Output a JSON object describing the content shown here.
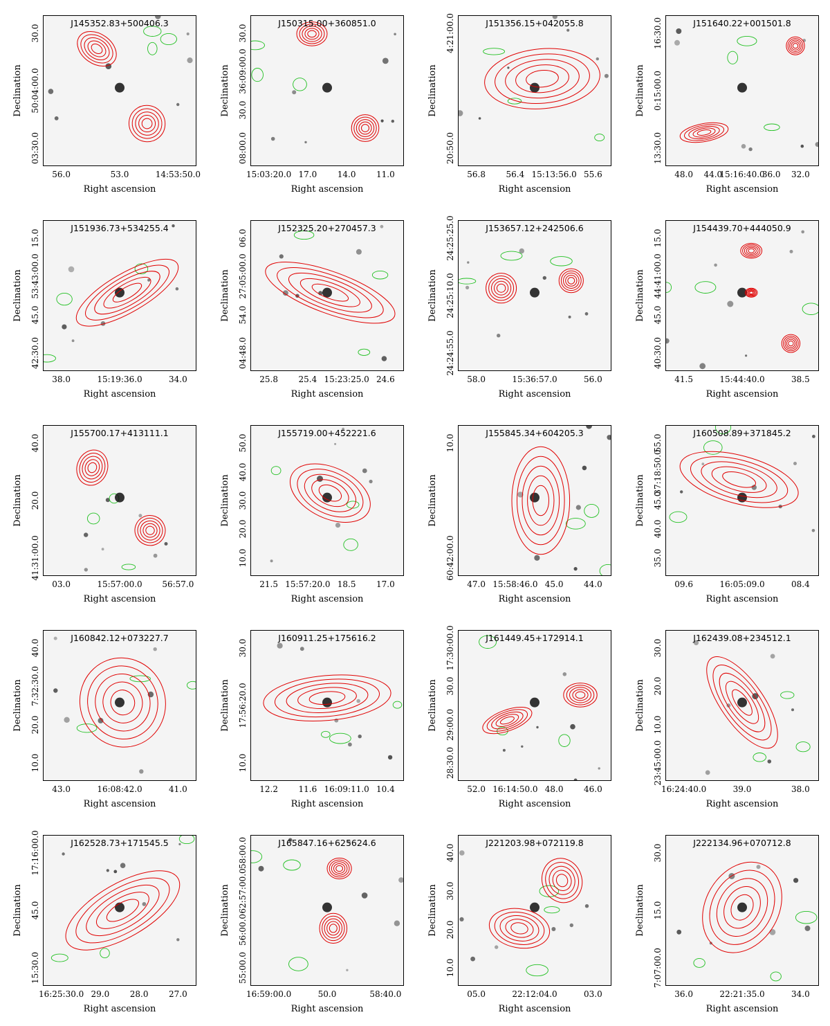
{
  "figure": {
    "x_axis_label": "Right ascension",
    "y_axis_label": "Declination",
    "colors": {
      "radio_contours": "#e00000",
      "other_contours": "#22c022",
      "background": "#f4f4f4",
      "source": "#111111"
    },
    "panels": [
      {
        "title": "J145352.83+500406.3",
        "x_ticks": [
          "56.0",
          "53.0",
          "14:53:50.0"
        ],
        "y_ticks": [
          "30.0",
          "50:04:00.0",
          "03:30.0"
        ]
      },
      {
        "title": "J150315.00+360851.0",
        "x_ticks": [
          "15:03:20.0",
          "17.0",
          "14.0",
          "11.0"
        ],
        "y_ticks": [
          "30.0",
          "36:09:00.0",
          "30.0",
          "08:00.0"
        ]
      },
      {
        "title": "J151356.15+042055.8",
        "x_ticks": [
          "56.8",
          "56.4",
          "15:13:56.0",
          "55.6"
        ],
        "y_ticks": [
          "4:21:00.0",
          "20:50.0"
        ]
      },
      {
        "title": "J151640.22+001501.8",
        "x_ticks": [
          "48.0",
          "44.0",
          "15:16:40.0",
          "36.0",
          "32.0"
        ],
        "y_ticks": [
          "16:30.0",
          "0:15:00.0",
          "13:30.0"
        ]
      },
      {
        "title": "J151936.73+534255.4",
        "x_ticks": [
          "38.0",
          "15:19:36.0",
          "34.0"
        ],
        "y_ticks": [
          "15.0",
          "53:43:00.0",
          "45.0",
          "42:30.0"
        ]
      },
      {
        "title": "J152325.20+270457.3",
        "x_ticks": [
          "25.8",
          "25.4",
          "15:23:25.0",
          "24.6"
        ],
        "y_ticks": [
          "06.0",
          "27:05:00.0",
          "54.0",
          "04:48.0"
        ]
      },
      {
        "title": "J153657.12+242506.6",
        "x_ticks": [
          "58.0",
          "15:36:57.0",
          "56.0"
        ],
        "y_ticks": [
          "24:25:25.0",
          "24:25:10.0",
          "24:24:55.0"
        ]
      },
      {
        "title": "J154439.70+444050.9",
        "x_ticks": [
          "41.5",
          "15:44:40.0",
          "38.5"
        ],
        "y_ticks": [
          "15.0",
          "44:41:00.0",
          "45.0",
          "40:30.0"
        ]
      },
      {
        "title": "J155700.17+413111.1",
        "x_ticks": [
          "03.0",
          "15:57:00.0",
          "56:57.0"
        ],
        "y_ticks": [
          "40.0",
          "20.0",
          "41:31:00.0"
        ]
      },
      {
        "title": "J155719.00+452221.6",
        "x_ticks": [
          "21.5",
          "15:57:20.0",
          "18.5",
          "17.0"
        ],
        "y_ticks": [
          "50.0",
          "40.0",
          "30.0",
          "20.0",
          "10.0"
        ]
      },
      {
        "title": "J155845.34+604205.3",
        "x_ticks": [
          "47.0",
          "15:58:46.0",
          "45.0",
          "44.0"
        ],
        "y_ticks": [
          "10.0",
          "60:42:00.0"
        ]
      },
      {
        "title": "J160508.89+371845.2",
        "x_ticks": [
          "09.6",
          "16:05:09.0",
          "08.4"
        ],
        "y_ticks": [
          "55.0",
          "37:18:50.0",
          "45.0",
          "40.0",
          "35.0"
        ]
      },
      {
        "title": "J160842.12+073227.7",
        "x_ticks": [
          "43.0",
          "16:08:42.0",
          "41.0"
        ],
        "y_ticks": [
          "40.0",
          "7:32:30.0",
          "20.0",
          "10.0"
        ]
      },
      {
        "title": "J160911.25+175616.2",
        "x_ticks": [
          "12.2",
          "11.6",
          "16:09:11.0",
          "10.4"
        ],
        "y_ticks": [
          "30.0",
          "17:56:20.0",
          "10.0"
        ]
      },
      {
        "title": "J161449.45+172914.1",
        "x_ticks": [
          "52.0",
          "16:14:50.0",
          "48.0",
          "46.0"
        ],
        "y_ticks": [
          "17:30:00.0",
          "30.0",
          "29:00.0",
          "28:30.0"
        ]
      },
      {
        "title": "J162439.08+234512.1",
        "x_ticks": [
          "16:24:40.0",
          "39.0",
          "38.0"
        ],
        "y_ticks": [
          "30.0",
          "20.0",
          "10.0",
          "23:45:00.0"
        ]
      },
      {
        "title": "J162528.73+171545.5",
        "x_ticks": [
          "16:25:30.0",
          "29.0",
          "28.0",
          "27.0"
        ],
        "y_ticks": [
          "17:16:00.0",
          "45.0",
          "15:30.0"
        ]
      },
      {
        "title": "J165847.16+625624.6",
        "x_ticks": [
          "16:59:00.0",
          "50.0",
          "58:40.0"
        ],
        "y_ticks": [
          "58:00.0",
          "62:57:00.0",
          "56:00.0",
          "55:00.0"
        ]
      },
      {
        "title": "J221203.98+072119.8",
        "x_ticks": [
          "05.0",
          "22:12:04.0",
          "03.0"
        ],
        "y_ticks": [
          "40.0",
          "30.0",
          "20.0",
          "10.0"
        ]
      },
      {
        "title": "J222134.96+070712.8",
        "x_ticks": [
          "36.0",
          "22:21:35.0",
          "34.0"
        ],
        "y_ticks": [
          "30.0",
          "15.0",
          "7:07:00.0"
        ]
      }
    ]
  }
}
